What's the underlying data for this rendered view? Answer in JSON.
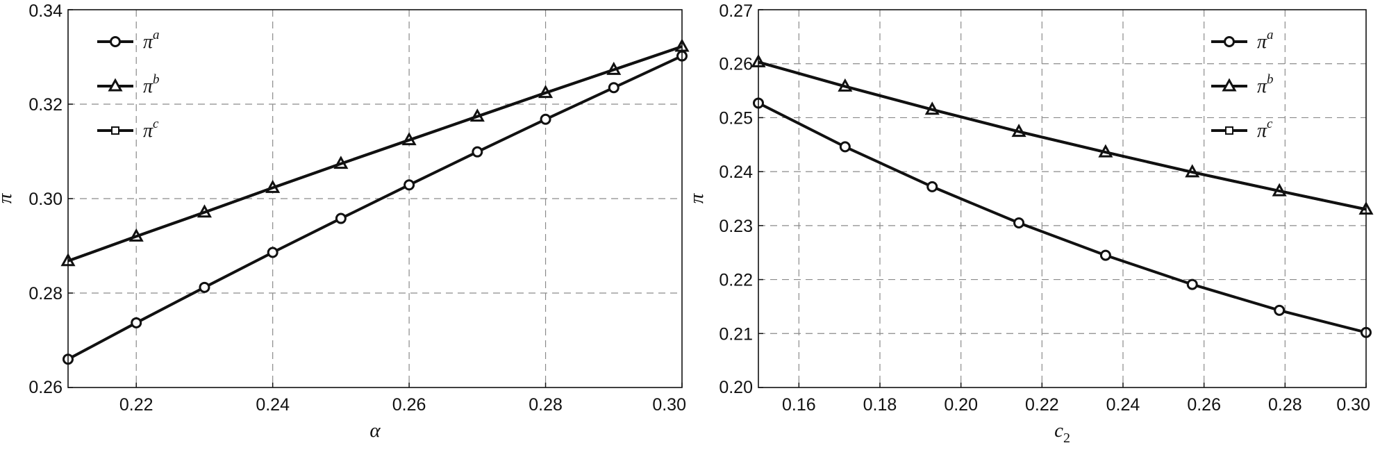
{
  "chart_data": [
    {
      "type": "line",
      "xlabel": "α",
      "ylabel": "π",
      "xlim": [
        0.21,
        0.3
      ],
      "ylim": [
        0.26,
        0.34
      ],
      "xticks": [
        0.22,
        0.24,
        0.26,
        0.28,
        0.3
      ],
      "xtick_labels": [
        "0.22",
        "0.24",
        "0.26",
        "0.28",
        "0.30"
      ],
      "yticks": [
        0.26,
        0.28,
        0.3,
        0.32,
        0.34
      ],
      "ytick_labels": [
        "0.26",
        "0.28",
        "0.30",
        "0.32",
        "0.34"
      ],
      "grid": true,
      "legend_position": "top-left",
      "x": [
        0.21,
        0.22,
        0.23,
        0.24,
        0.25,
        0.26,
        0.27,
        0.28,
        0.29,
        0.3
      ],
      "series": [
        {
          "name": "π",
          "sup": "a",
          "marker": "circle",
          "values": [
            0.266,
            0.2737,
            0.2812,
            0.2886,
            0.2958,
            0.3029,
            0.3099,
            0.3168,
            0.3235,
            0.3302
          ]
        },
        {
          "name": "π",
          "sup": "b",
          "marker": "triangle",
          "values": [
            0.2868,
            0.292,
            0.2971,
            0.3023,
            0.3074,
            0.3124,
            0.3174,
            0.3224,
            0.3273,
            0.3322
          ]
        },
        {
          "name": "π",
          "sup": "c",
          "marker": "square",
          "values": [
            0.2868,
            0.292,
            0.2971,
            0.3023,
            0.3074,
            0.3124,
            0.3174,
            0.3224,
            0.3273,
            0.3322
          ]
        }
      ]
    },
    {
      "type": "line",
      "xlabel": "c",
      "xlabel_sub": "2",
      "ylabel": "π",
      "xlim": [
        0.15,
        0.3
      ],
      "ylim": [
        0.2,
        0.27
      ],
      "xticks": [
        0.16,
        0.18,
        0.2,
        0.22,
        0.24,
        0.26,
        0.28,
        0.3
      ],
      "xtick_labels": [
        "0.16",
        "0.18",
        "0.20",
        "0.22",
        "0.24",
        "0.26",
        "0.28",
        "0.30"
      ],
      "yticks": [
        0.2,
        0.21,
        0.22,
        0.23,
        0.24,
        0.25,
        0.26,
        0.27
      ],
      "ytick_labels": [
        "0.20",
        "0.21",
        "0.22",
        "0.23",
        "0.24",
        "0.25",
        "0.26",
        "0.27"
      ],
      "grid": true,
      "legend_position": "top-right",
      "x": [
        0.15,
        0.1714,
        0.1929,
        0.2143,
        0.2357,
        0.2571,
        0.2786,
        0.3
      ],
      "series": [
        {
          "name": "π",
          "sup": "a",
          "marker": "circle",
          "values": [
            0.2527,
            0.2446,
            0.2372,
            0.2305,
            0.2245,
            0.2191,
            0.2143,
            0.2102
          ]
        },
        {
          "name": "π",
          "sup": "b",
          "marker": "triangle",
          "values": [
            0.2603,
            0.2558,
            0.2515,
            0.2474,
            0.2436,
            0.2399,
            0.2364,
            0.233
          ]
        },
        {
          "name": "π",
          "sup": "c",
          "marker": "square",
          "values": [
            0.2603,
            0.2558,
            0.2515,
            0.2474,
            0.2436,
            0.2399,
            0.2364,
            0.233
          ]
        }
      ]
    }
  ]
}
